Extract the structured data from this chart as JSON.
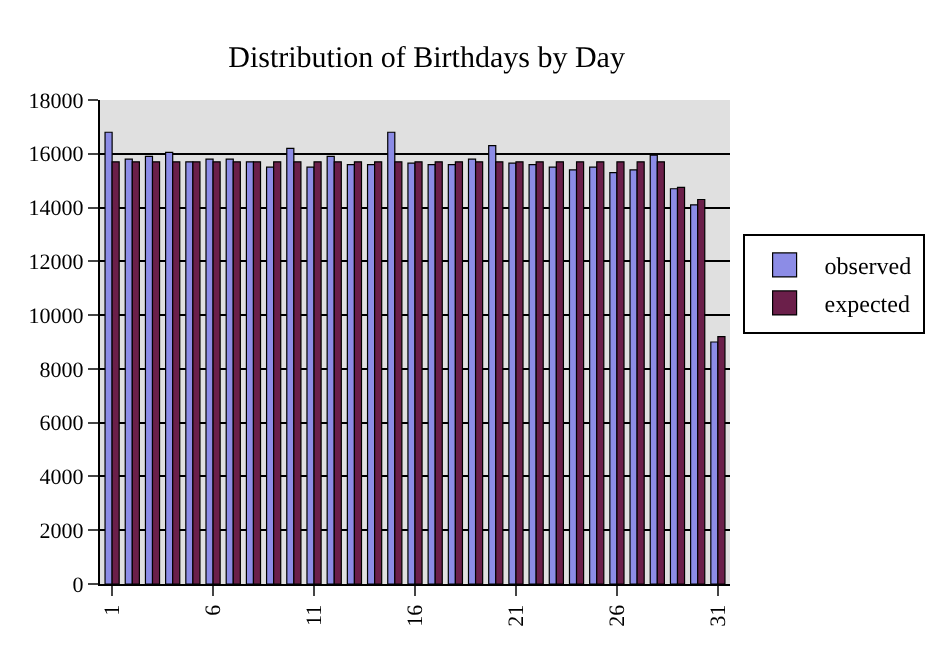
{
  "chart_data": {
    "type": "bar",
    "title": "Distribution of Birthdays by Day",
    "categories": [
      "1",
      null,
      null,
      null,
      null,
      "6",
      null,
      null,
      null,
      null,
      "11",
      null,
      null,
      null,
      null,
      "16",
      null,
      null,
      null,
      null,
      "21",
      null,
      null,
      null,
      null,
      "26",
      null,
      null,
      null,
      null,
      "31"
    ],
    "series": [
      {
        "name": "observed",
        "color": "#8c8ce6",
        "values": [
          16800,
          15800,
          15900,
          16050,
          15700,
          15800,
          15800,
          15700,
          15500,
          16200,
          15500,
          15900,
          15600,
          15600,
          16800,
          15650,
          15600,
          15600,
          15800,
          16300,
          15650,
          15600,
          15500,
          15400,
          15500,
          15300,
          15400,
          15950,
          14700,
          14100,
          9000
        ]
      },
      {
        "name": "expected",
        "color": "#6b1f4a",
        "values": [
          15700,
          15700,
          15700,
          15700,
          15700,
          15700,
          15700,
          15700,
          15700,
          15700,
          15700,
          15700,
          15700,
          15700,
          15700,
          15700,
          15700,
          15700,
          15700,
          15700,
          15700,
          15700,
          15700,
          15700,
          15700,
          15700,
          15700,
          15700,
          14750,
          14300,
          9200
        ]
      }
    ],
    "ylim": [
      0,
      18000
    ],
    "yticks": [
      0,
      2000,
      4000,
      6000,
      8000,
      10000,
      12000,
      14000,
      16000,
      18000
    ],
    "grid": "y",
    "legend": "right"
  }
}
